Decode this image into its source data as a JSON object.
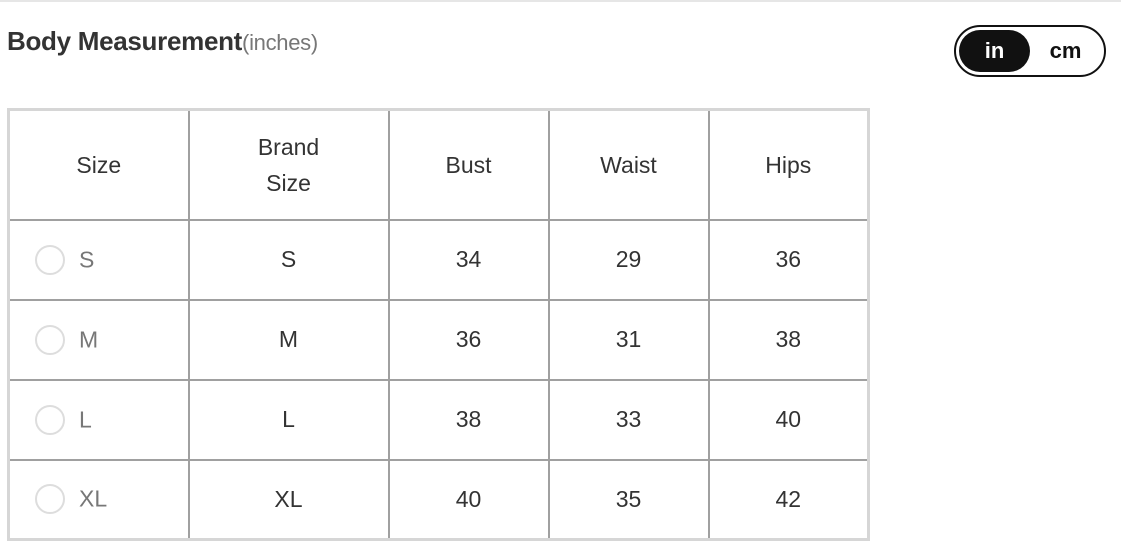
{
  "title": "Body Measurement",
  "unit_label": "(inches)",
  "unit_toggle": {
    "options": [
      "in",
      "cm"
    ],
    "selected": "in"
  },
  "table": {
    "headers": [
      "Size",
      "Brand\nSize",
      "Bust",
      "Waist",
      "Hips"
    ],
    "header_brand_lines": [
      "Brand",
      "Size"
    ],
    "rows": [
      {
        "size": "S",
        "brand": "S",
        "bust": "34",
        "waist": "29",
        "hips": "36"
      },
      {
        "size": "M",
        "brand": "M",
        "bust": "36",
        "waist": "31",
        "hips": "38"
      },
      {
        "size": "L",
        "brand": "L",
        "bust": "38",
        "waist": "33",
        "hips": "40"
      },
      {
        "size": "XL",
        "brand": "XL",
        "bust": "40",
        "waist": "35",
        "hips": "42"
      }
    ]
  }
}
